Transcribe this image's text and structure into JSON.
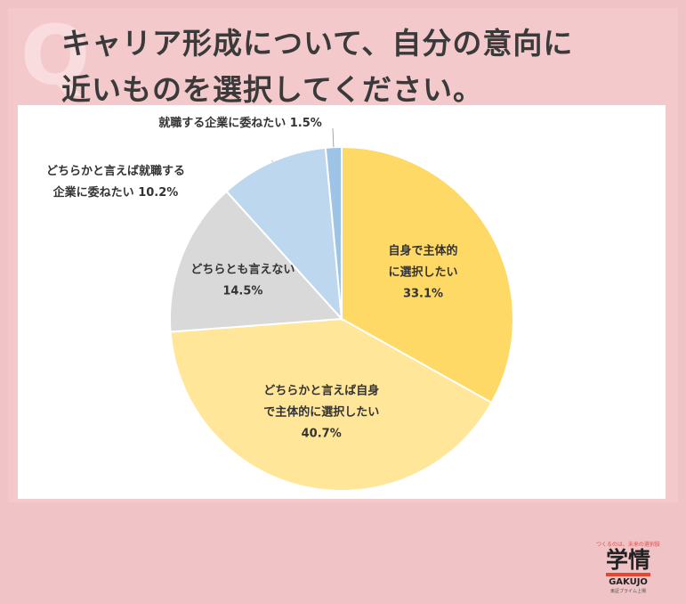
{
  "question_mark": "Q",
  "title_lines": [
    "キャリア形成について、自分の意向に",
    "近いものを選択してください。"
  ],
  "chart_data": {
    "type": "pie",
    "title": "キャリア形成について、自分の意向に近いものを選択してください。",
    "start": "12 o'clock, clockwise",
    "slices": [
      {
        "label_lines": [
          "自身で主体的",
          "に選択したい"
        ],
        "value": 33.1,
        "value_label": "33.1%",
        "color": "#ffd966",
        "label_position": "inside"
      },
      {
        "label_lines": [
          "どちらかと言えば自身",
          "で主体的に選択したい"
        ],
        "value": 40.7,
        "value_label": "40.7%",
        "color": "#ffe699",
        "label_position": "inside"
      },
      {
        "label_lines": [
          "どちらとも言えない"
        ],
        "value": 14.5,
        "value_label": "14.5%",
        "color": "#d9d9d9",
        "label_position": "inside"
      },
      {
        "label_lines": [
          "どちらかと言えば就職する",
          "企業に委ねたい 10.2%"
        ],
        "value": 10.2,
        "value_label": "10.2%",
        "color": "#bdd7ee",
        "label_position": "outside"
      },
      {
        "label_lines": [
          "就職する企業に委ねたい 1.5%"
        ],
        "value": 1.5,
        "value_label": "1.5%",
        "color": "#9dc3e6",
        "label_position": "outside"
      }
    ]
  },
  "logo": {
    "tagline": "つくるのは、未来の選択肢",
    "kanji": "学情",
    "english": "GAKUJO",
    "sub": "東証プライム上場"
  }
}
